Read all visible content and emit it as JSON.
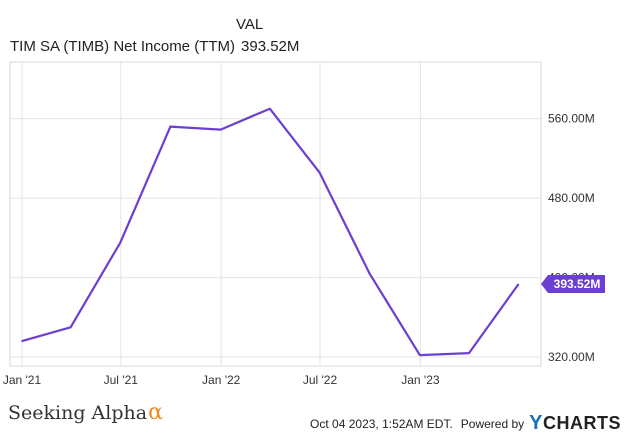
{
  "legend": {
    "header": "VAL",
    "series_label": "TIM SA (TIMB) Net Income (TTM)",
    "series_value": "393.52M"
  },
  "footer": {
    "brand": "Seeking Alpha",
    "brand_mark": "α",
    "timestamp": "Oct 04 2023, 1:52AM EDT.",
    "powered_by": "Powered by",
    "logo_prefix": "Y",
    "logo_rest": "CHARTS"
  },
  "colors": {
    "line": "#6b3fd1",
    "grid": "#e4e4e4",
    "badge": "#6b3fd1"
  },
  "chart_data": {
    "type": "line",
    "x": [
      "2020-12-31",
      "2021-03-31",
      "2021-06-30",
      "2021-09-30",
      "2021-12-31",
      "2022-03-31",
      "2022-06-30",
      "2022-09-30",
      "2022-12-31",
      "2023-03-31",
      "2023-06-30"
    ],
    "series": [
      {
        "name": "TIM SA (TIMB) Net Income (TTM)",
        "values": [
          336,
          350,
          435,
          552,
          549,
          570,
          506,
          404,
          322,
          324,
          393.52
        ]
      }
    ],
    "x_ticks": [
      {
        "date": "2021-01-01",
        "label": "Jan '21"
      },
      {
        "date": "2021-07-01",
        "label": "Jul '21"
      },
      {
        "date": "2022-01-01",
        "label": "Jan '22"
      },
      {
        "date": "2022-07-01",
        "label": "Jul '22"
      },
      {
        "date": "2023-01-01",
        "label": "Jan '23"
      }
    ],
    "y_ticks": [
      {
        "value": 320,
        "label": "320.00M"
      },
      {
        "value": 400,
        "label": "400.00M"
      },
      {
        "value": 480,
        "label": "480.00M"
      },
      {
        "value": 560,
        "label": "560.00M"
      }
    ],
    "xlim": [
      "2020-12-10",
      "2023-08-10"
    ],
    "ylim": [
      311,
      617
    ],
    "last_value_label": "393.52M",
    "grid": true,
    "y_axis_side": "right"
  }
}
